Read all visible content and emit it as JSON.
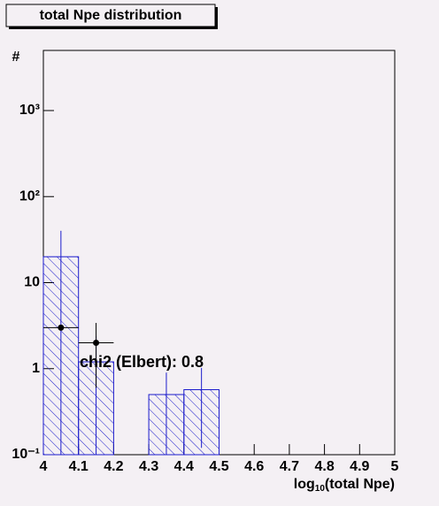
{
  "chart_data": {
    "type": "histogram",
    "title": "total Npe distribution",
    "x_label": "log",
    "x_label_sub": "10",
    "x_label_rest": "(total Npe)",
    "y_label": "#",
    "annotation": "chi2 (Elbert): 0.8",
    "bins": [
      4.0,
      4.1,
      4.2,
      4.3,
      4.4,
      4.5,
      4.6,
      4.7,
      4.8,
      4.9,
      5.0
    ],
    "values": [
      20,
      1.2,
      0,
      0.5,
      0.57,
      0,
      0,
      0,
      0,
      0
    ],
    "errors": [
      20,
      1.2,
      0,
      0.4,
      0.45,
      0,
      0,
      0,
      0,
      0
    ],
    "color": "#1c1ccc",
    "points": {
      "x": [
        4.05,
        4.15
      ],
      "values": [
        3,
        2
      ],
      "x_errors": [
        0.05,
        0.05
      ],
      "errors": [
        0,
        1.4
      ],
      "color": "#000000"
    },
    "log_y": true,
    "xlim": [
      4,
      5
    ],
    "ylim": [
      0.1,
      5000
    ],
    "xticks": [
      4,
      4.1,
      4.2,
      4.3,
      4.4,
      4.5,
      4.6,
      4.7,
      4.8,
      4.9,
      5
    ],
    "yticks": [
      {
        "value": 0.1,
        "label": "10⁻¹"
      },
      1,
      10,
      {
        "value": 100,
        "label": "10²"
      },
      {
        "value": 1000,
        "label": "10³"
      }
    ]
  }
}
